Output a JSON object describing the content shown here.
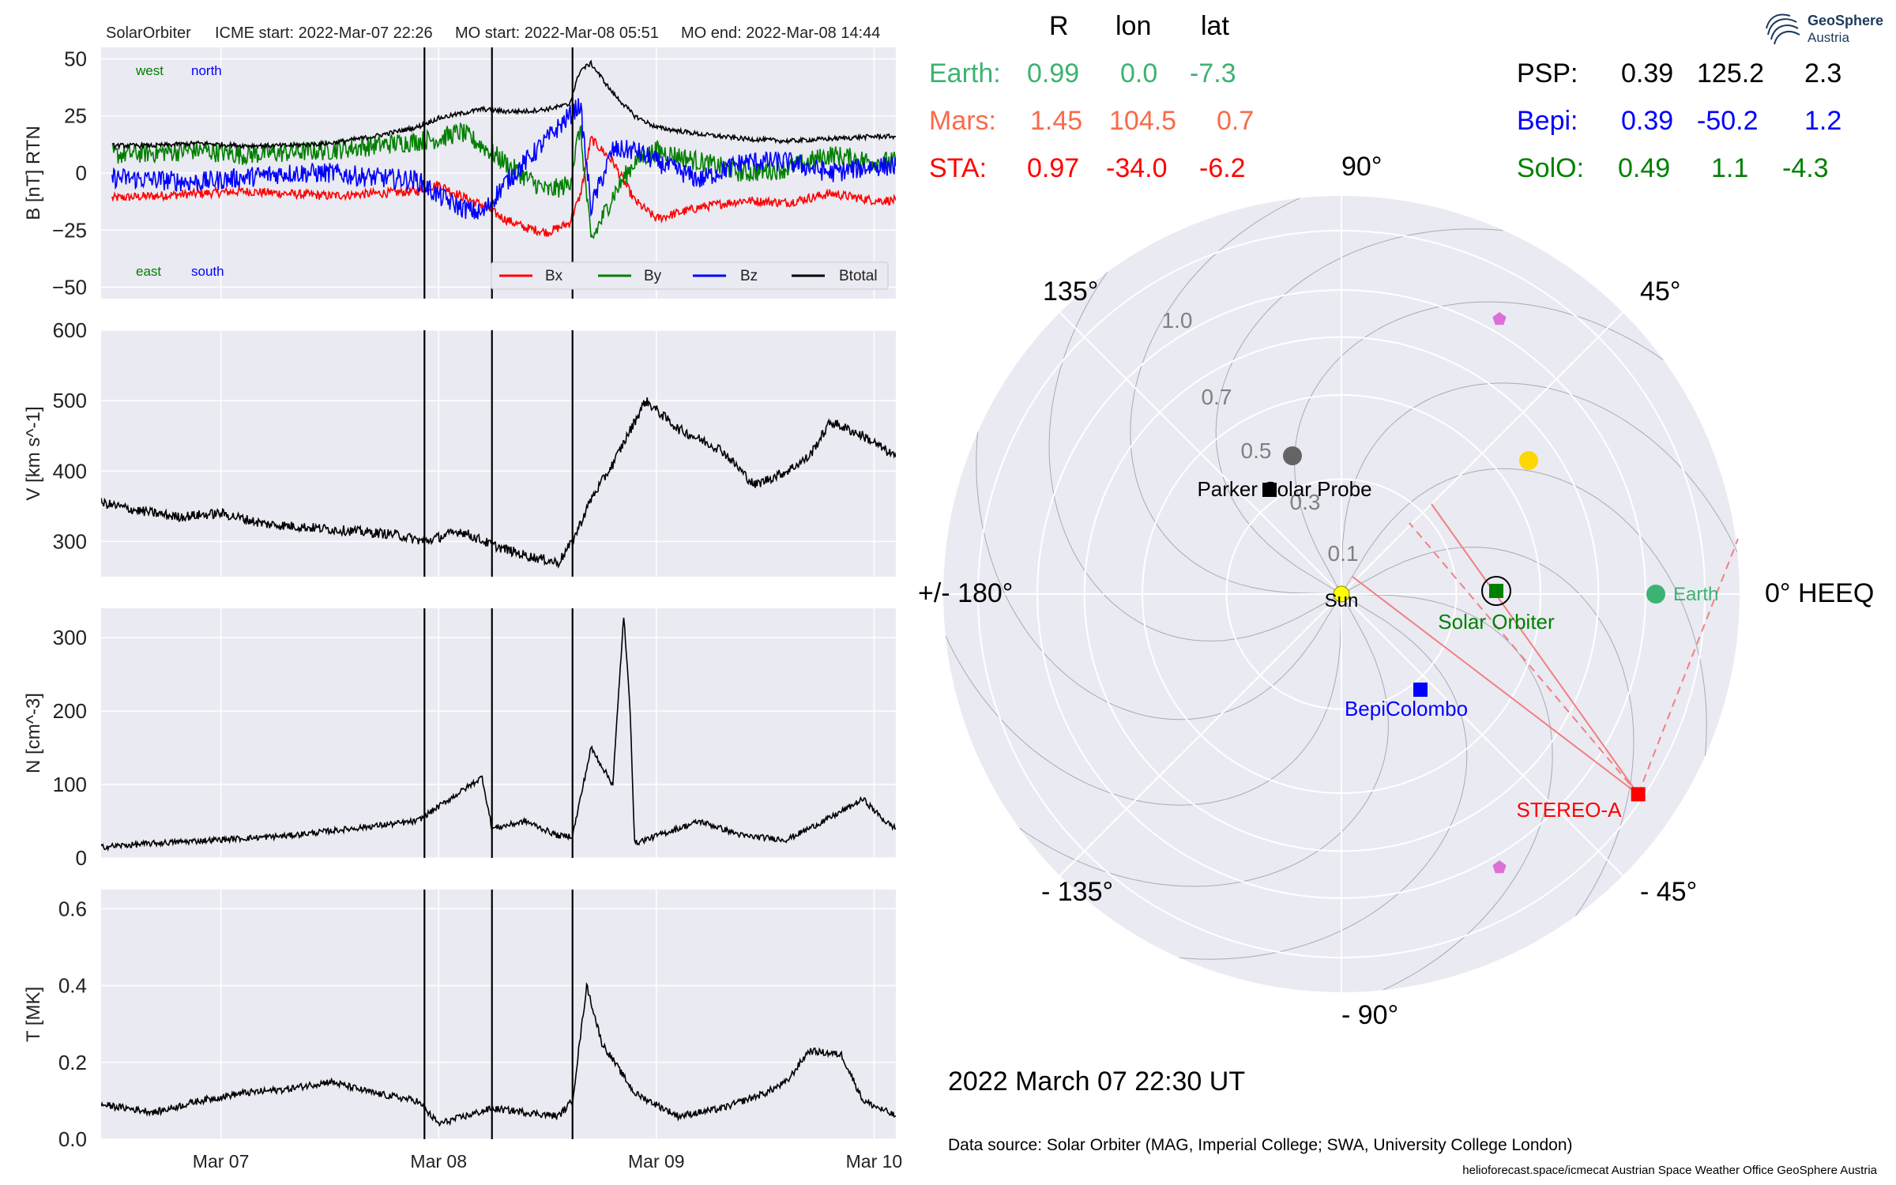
{
  "header": {
    "spacecraft": "SolarOrbiter",
    "icme_start": "ICME start: 2022-Mar-07 22:26",
    "mo_start": "MO start: 2022-Mar-08 05:51",
    "mo_end": "MO end: 2022-Mar-08 14:44"
  },
  "bfield": {
    "west_label": "west",
    "north_label": "north",
    "east_label": "east",
    "south_label": "south",
    "legend": [
      "Bx",
      "By",
      "Bz",
      "Btotal"
    ]
  },
  "colors": {
    "panel_bg": "#eaeaf2",
    "bx": "#ff0000",
    "by": "#007f00",
    "bz": "#0000ff",
    "btotal": "#000000",
    "earth": "#3cb371",
    "mars": "#fa6a4a",
    "sta": "#ff0000",
    "psp": "#000000",
    "bepi": "#0000ff",
    "solo": "#008000",
    "planet_gray": "#646464",
    "venus_yellow": "#ffd700",
    "magenta": "#da70d6"
  },
  "positions_table": {
    "header": [
      "R",
      "lon",
      "lat"
    ],
    "rows_left": [
      {
        "name": "Earth:",
        "R": "0.99",
        "lon": "0.0",
        "lat": "-7.3"
      },
      {
        "name": "Mars:",
        "R": "1.45",
        "lon": "104.5",
        "lat": "0.7"
      },
      {
        "name": "STA:",
        "R": "0.97",
        "lon": "-34.0",
        "lat": "-6.2"
      }
    ],
    "rows_right": [
      {
        "name": "PSP:",
        "R": "0.39",
        "lon": "125.2",
        "lat": "2.3"
      },
      {
        "name": "Bepi:",
        "R": "0.39",
        "lon": "-50.2",
        "lat": "1.2"
      },
      {
        "name": "SolO:",
        "R": "0.49",
        "lon": "1.1",
        "lat": "-4.3"
      }
    ]
  },
  "polar": {
    "angle_labels": [
      "0° HEEQ",
      "45°",
      "90°",
      "135°",
      "+/- 180°",
      "- 135°",
      "- 90°",
      "- 45°"
    ],
    "radius_labels": [
      "0.1",
      "0.3",
      "0.5",
      "0.7",
      "1.0"
    ],
    "labels": {
      "sun": "Sun",
      "earth": "Earth",
      "solo": "Solar Orbiter",
      "bepi": "BepiColombo",
      "psp": "Parker Solar Probe",
      "sta": "STEREO-A"
    },
    "objects": [
      {
        "name": "Sun",
        "r": 0.0,
        "lon": 0.0
      },
      {
        "name": "Earth",
        "r": 0.99,
        "lon": 0.0
      },
      {
        "name": "Solar Orbiter",
        "r": 0.49,
        "lon": 1.1
      },
      {
        "name": "BepiColombo",
        "r": 0.39,
        "lon": -50.2
      },
      {
        "name": "Parker Solar Probe",
        "r": 0.39,
        "lon": 125.2
      },
      {
        "name": "STEREO-A",
        "r": 0.97,
        "lon": -34.0
      },
      {
        "name": "Mercury",
        "r": 0.45,
        "lon": 116
      },
      {
        "name": "Venus",
        "r": 0.72,
        "lon": 35
      },
      {
        "name": "Mars-marker-upper",
        "r": 1.0,
        "lon": 54
      },
      {
        "name": "Mars-marker-lower",
        "r": 1.0,
        "lon": -54
      }
    ]
  },
  "date_text": "2022 March 07  22:30 UT",
  "data_source": "Data source: Solar Orbiter (MAG, Imperial College; SWA, University College London)",
  "credits": "helioforecast.space/icmecat   Austrian Space Weather Office   GeoSphere Austria",
  "logo": {
    "line1": "GeoSphere",
    "line2": "Austria"
  },
  "chart_data": [
    {
      "type": "line",
      "panel": "magnetic field",
      "ylabel": "B [nT] RTN",
      "ylim": [
        -55,
        55
      ],
      "yticks": [
        -50,
        -25,
        0,
        25,
        50
      ],
      "x_ticks": [
        "Mar 07",
        "Mar 08",
        "Mar 09",
        "Mar 10"
      ],
      "xlim_days": [
        -0.55,
        3.1
      ],
      "event_lines_days": [
        0.935,
        1.245,
        1.615
      ],
      "legend_position": "lower right",
      "x": [
        -0.5,
        -0.3,
        -0.1,
        0.1,
        0.3,
        0.5,
        0.7,
        0.9,
        1.0,
        1.1,
        1.2,
        1.3,
        1.4,
        1.5,
        1.6,
        1.65,
        1.7,
        1.8,
        1.9,
        2.0,
        2.2,
        2.4,
        2.6,
        2.8,
        3.0,
        3.1
      ],
      "series": [
        {
          "name": "Bx",
          "values": [
            -11,
            -10,
            -9,
            -8,
            -9,
            -10,
            -9,
            -8,
            -5,
            -10,
            -14,
            -20,
            -24,
            -26,
            -22,
            -10,
            15,
            5,
            -12,
            -20,
            -15,
            -12,
            -13,
            -9,
            -12,
            -12
          ]
        },
        {
          "name": "By",
          "values": [
            8,
            9,
            10,
            8,
            9,
            10,
            12,
            14,
            15,
            18,
            12,
            5,
            -2,
            -8,
            -5,
            20,
            -30,
            -10,
            5,
            10,
            5,
            0,
            2,
            8,
            5,
            5
          ]
        },
        {
          "name": "Bz",
          "values": [
            -2,
            -3,
            -4,
            -2,
            0,
            0,
            -2,
            -3,
            -10,
            -15,
            -18,
            -5,
            5,
            15,
            25,
            30,
            -15,
            10,
            10,
            5,
            -3,
            5,
            5,
            0,
            3,
            3
          ]
        },
        {
          "name": "Btotal",
          "values": [
            12,
            12,
            13,
            12,
            12,
            13,
            16,
            20,
            24,
            26,
            28,
            27,
            27,
            28,
            30,
            45,
            48,
            35,
            25,
            20,
            17,
            15,
            14,
            15,
            16,
            16
          ]
        }
      ]
    },
    {
      "type": "line",
      "panel": "speed",
      "ylabel": "V [km s^-1]",
      "ylim": [
        250,
        600
      ],
      "yticks": [
        300,
        400,
        500,
        600
      ],
      "x": [
        -0.55,
        -0.4,
        -0.2,
        0.0,
        0.2,
        0.4,
        0.6,
        0.8,
        0.935,
        1.1,
        1.245,
        1.4,
        1.55,
        1.615,
        1.7,
        1.8,
        1.9,
        1.95,
        2.1,
        2.3,
        2.45,
        2.6,
        2.7,
        2.8,
        2.95,
        3.1
      ],
      "values": [
        355,
        345,
        335,
        340,
        325,
        320,
        315,
        310,
        300,
        315,
        295,
        280,
        270,
        300,
        360,
        410,
        470,
        500,
        460,
        430,
        380,
        400,
        420,
        470,
        450,
        420
      ]
    },
    {
      "type": "line",
      "panel": "density",
      "ylabel": "N [cm^-3]",
      "ylim": [
        0,
        340
      ],
      "yticks": [
        0,
        100,
        200,
        300
      ],
      "x": [
        -0.55,
        -0.3,
        0.0,
        0.3,
        0.6,
        0.9,
        1.0,
        1.1,
        1.2,
        1.245,
        1.4,
        1.55,
        1.615,
        1.7,
        1.8,
        1.85,
        1.88,
        1.9,
        2.0,
        2.2,
        2.4,
        2.6,
        2.8,
        2.95,
        3.05,
        3.1
      ],
      "values": [
        15,
        20,
        25,
        30,
        40,
        50,
        70,
        90,
        110,
        40,
        50,
        30,
        30,
        150,
        100,
        330,
        200,
        20,
        30,
        50,
        30,
        25,
        55,
        80,
        50,
        40
      ]
    },
    {
      "type": "line",
      "panel": "temperature",
      "ylabel": "T [MK]",
      "ylim": [
        0,
        0.65
      ],
      "yticks": [
        0.0,
        0.2,
        0.4,
        0.6
      ],
      "x": [
        -0.55,
        -0.3,
        -0.1,
        0.1,
        0.3,
        0.5,
        0.7,
        0.9,
        1.0,
        1.245,
        1.4,
        1.55,
        1.615,
        1.68,
        1.75,
        1.9,
        2.1,
        2.3,
        2.5,
        2.6,
        2.7,
        2.85,
        2.95,
        3.1
      ],
      "values": [
        0.09,
        0.07,
        0.1,
        0.12,
        0.13,
        0.15,
        0.12,
        0.1,
        0.04,
        0.08,
        0.07,
        0.06,
        0.1,
        0.4,
        0.25,
        0.12,
        0.06,
        0.08,
        0.12,
        0.15,
        0.23,
        0.22,
        0.1,
        0.06
      ]
    }
  ]
}
